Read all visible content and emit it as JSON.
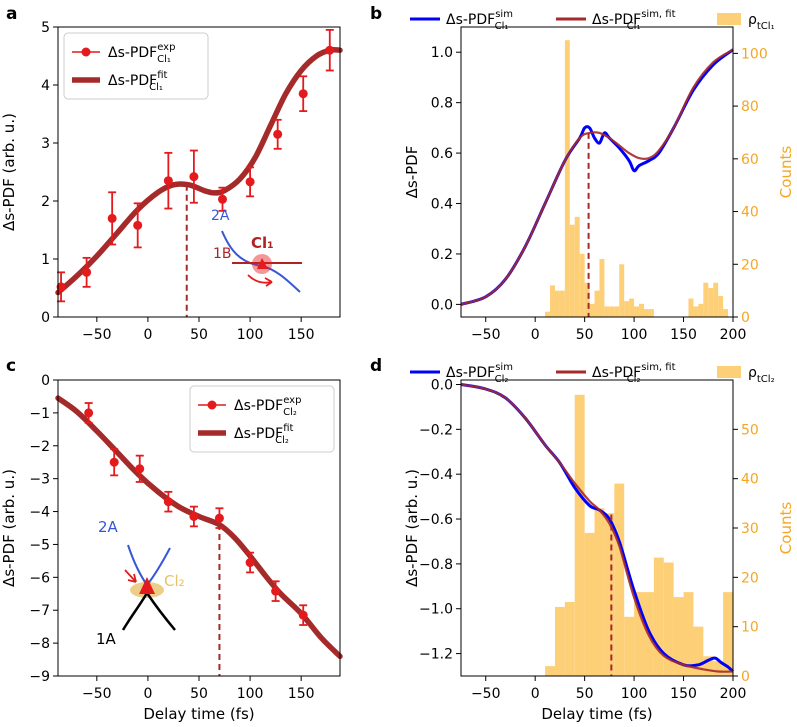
{
  "colors": {
    "exp": "#e41a1c",
    "fit": "#a52a2a",
    "sim": "#0000ff",
    "hist": "#fdcf77",
    "counts": "#f5a623",
    "inset_blue": "#3557d8",
    "inset_yellow": "#e8c26a",
    "black": "#000000"
  },
  "chart_data": [
    {
      "panel": "a",
      "type": "line",
      "xlabel": "",
      "ylabel": "Δs-PDF (arb. u.)",
      "xlim": [
        -88,
        188
      ],
      "ylim": [
        0,
        5
      ],
      "xticks": [
        -50,
        0,
        50,
        100,
        150
      ],
      "yticks": [
        0,
        1,
        2,
        3,
        4,
        5
      ],
      "legend": {
        "position": "top-left",
        "exp": {
          "base": "Δs-PDF",
          "sup": "exp",
          "sub": "Cl₁"
        },
        "fit": {
          "base": "Δs-PDF",
          "sup": "fit",
          "sub": "Cl₁"
        }
      },
      "exp": {
        "x": [
          -85,
          -60,
          -35,
          -10,
          20,
          45,
          73,
          100,
          127,
          152,
          178
        ],
        "y": [
          0.52,
          0.77,
          1.7,
          1.58,
          2.35,
          2.42,
          2.03,
          2.33,
          3.15,
          3.85,
          4.6
        ],
        "err": [
          0.25,
          0.25,
          0.45,
          0.38,
          0.48,
          0.45,
          0.2,
          0.25,
          0.25,
          0.3,
          0.35
        ]
      },
      "fit": {
        "x": [
          -88,
          -70,
          -50,
          -30,
          -10,
          10,
          25,
          40,
          55,
          65,
          75,
          90,
          105,
          120,
          135,
          150,
          165,
          178,
          188
        ],
        "y": [
          0.42,
          0.7,
          1.05,
          1.45,
          1.85,
          2.15,
          2.28,
          2.28,
          2.18,
          2.14,
          2.18,
          2.38,
          2.75,
          3.3,
          3.85,
          4.25,
          4.5,
          4.6,
          4.6
        ]
      },
      "marker_x": 38,
      "inset": {
        "labels": [
          "2A",
          "1B",
          "Cl₁"
        ]
      }
    },
    {
      "panel": "b",
      "type": "line",
      "xlabel": "",
      "ylabel": "Δs-PDF",
      "ylabel_right": "Counts",
      "xlim": [
        -75,
        200
      ],
      "ylim": [
        -0.05,
        1.1
      ],
      "ylim_right": [
        0,
        110
      ],
      "xticks": [
        -50,
        0,
        50,
        100,
        150,
        200
      ],
      "yticks": [
        0.0,
        0.2,
        0.4,
        0.6,
        0.8,
        1.0
      ],
      "yticks_right": [
        0,
        20,
        40,
        60,
        80,
        100
      ],
      "legend": {
        "position": "top",
        "sim": {
          "base": "Δs-PDF",
          "sup": "sim",
          "sub": "Cl₁"
        },
        "fit": {
          "base": "Δs-PDF",
          "sup": "sim, fit",
          "sub": "Cl₁"
        },
        "hist": {
          "base": "ρ",
          "sub": "tCl₁"
        }
      },
      "hist": {
        "bin_edges": [
          10,
          15,
          20,
          25,
          30,
          35,
          40,
          45,
          50,
          55,
          60,
          65,
          70,
          75,
          80,
          85,
          90,
          95,
          100,
          105,
          110,
          115,
          120,
          125,
          130,
          135,
          140,
          145,
          150,
          155,
          160,
          165,
          170,
          175,
          180,
          185,
          190,
          195
        ],
        "counts": [
          2,
          12,
          10,
          10,
          105,
          35,
          38,
          24,
          13,
          5,
          10,
          22,
          4,
          4,
          4,
          20,
          6,
          7,
          4,
          5,
          3,
          3,
          0,
          0,
          0,
          0,
          0,
          0,
          0,
          7,
          4,
          5,
          13,
          11,
          13,
          8,
          3
        ]
      },
      "sim": {
        "x": [
          -75,
          -50,
          -30,
          -10,
          10,
          30,
          45,
          50,
          55,
          60,
          65,
          70,
          75,
          85,
          95,
          100,
          105,
          115,
          125,
          140,
          160,
          180,
          200
        ],
        "y": [
          0.0,
          0.03,
          0.1,
          0.23,
          0.4,
          0.57,
          0.66,
          0.7,
          0.7,
          0.66,
          0.64,
          0.68,
          0.66,
          0.62,
          0.57,
          0.53,
          0.55,
          0.57,
          0.6,
          0.7,
          0.85,
          0.95,
          1.01
        ]
      },
      "fit": {
        "x": [
          -75,
          -50,
          -30,
          -10,
          10,
          30,
          45,
          55,
          65,
          75,
          85,
          95,
          105,
          115,
          125,
          140,
          160,
          180,
          200
        ],
        "y": [
          0.0,
          0.03,
          0.1,
          0.23,
          0.4,
          0.57,
          0.66,
          0.68,
          0.68,
          0.66,
          0.63,
          0.6,
          0.58,
          0.58,
          0.61,
          0.7,
          0.86,
          0.96,
          1.01
        ]
      },
      "marker_x": 54,
      "marker_y": 0.68
    },
    {
      "panel": "c",
      "type": "line",
      "xlabel": "Delay time (fs)",
      "ylabel": "Δs-PDF (arb. u.)",
      "xlim": [
        -88,
        188
      ],
      "ylim": [
        -9,
        0
      ],
      "xticks": [
        -50,
        0,
        50,
        100,
        150
      ],
      "yticks": [
        0,
        -1,
        -2,
        -3,
        -4,
        -5,
        -6,
        -7,
        -8,
        -9
      ],
      "legend": {
        "position": "top-right",
        "exp": {
          "base": "Δs-PDF",
          "sup": "exp",
          "sub": "Cl₂"
        },
        "fit": {
          "base": "Δs-PDF",
          "sup": "fit",
          "sub": "Cl₂"
        }
      },
      "exp": {
        "x": [
          -58,
          -33,
          -8,
          20,
          45,
          70,
          100,
          125,
          152
        ],
        "y": [
          -1.0,
          -2.5,
          -2.7,
          -3.7,
          -4.15,
          -4.2,
          -5.55,
          -6.42,
          -7.15
        ],
        "err": [
          0.3,
          0.4,
          0.4,
          0.3,
          0.3,
          0.3,
          0.3,
          0.3,
          0.3
        ]
      },
      "fit": {
        "x": [
          -88,
          -70,
          -50,
          -30,
          -10,
          10,
          30,
          50,
          70,
          85,
          100,
          115,
          130,
          150,
          170,
          188
        ],
        "y": [
          -0.55,
          -0.95,
          -1.55,
          -2.2,
          -2.85,
          -3.4,
          -3.85,
          -4.15,
          -4.4,
          -4.8,
          -5.35,
          -5.95,
          -6.5,
          -7.1,
          -7.85,
          -8.4
        ]
      },
      "marker_x": 70,
      "inset": {
        "labels": [
          "2A",
          "1A",
          "Cl₂"
        ]
      }
    },
    {
      "panel": "d",
      "type": "line",
      "xlabel": "Delay time (fs)",
      "ylabel": "Δs-PDF (arb. u.)",
      "ylabel_right": "Counts",
      "xlim": [
        -75,
        200
      ],
      "ylim": [
        -1.3,
        0.02
      ],
      "ylim_right": [
        0,
        60
      ],
      "xticks": [
        -50,
        0,
        50,
        100,
        150,
        200
      ],
      "yticks": [
        0.0,
        -0.2,
        -0.4,
        -0.6,
        -0.8,
        -1.0,
        -1.2
      ],
      "yticks_right": [
        0,
        10,
        20,
        30,
        40,
        50
      ],
      "legend": {
        "position": "top",
        "sim": {
          "base": "Δs-PDF",
          "sup": "sim",
          "sub": "Cl₂"
        },
        "fit": {
          "base": "Δs-PDF",
          "sup": "sim, fit",
          "sub": "Cl₂"
        },
        "hist": {
          "base": "ρ",
          "sub": "tCl₂"
        }
      },
      "hist": {
        "bin_edges": [
          10,
          20,
          30,
          40,
          50,
          60,
          70,
          80,
          90,
          100,
          110,
          120,
          130,
          140,
          150,
          160,
          170,
          180,
          190,
          200
        ],
        "counts": [
          2,
          14,
          15,
          57,
          29,
          34,
          33,
          39,
          12,
          17,
          17,
          24,
          23,
          16,
          17,
          10,
          4,
          3,
          17
        ]
      },
      "sim": {
        "x": [
          -75,
          -50,
          -30,
          -10,
          10,
          25,
          40,
          55,
          65,
          75,
          85,
          100,
          115,
          130,
          150,
          165,
          175,
          182,
          188,
          195,
          200
        ],
        "y": [
          0.0,
          -0.02,
          -0.06,
          -0.15,
          -0.27,
          -0.35,
          -0.46,
          -0.54,
          -0.56,
          -0.6,
          -0.7,
          -0.92,
          -1.1,
          -1.2,
          -1.25,
          -1.25,
          -1.23,
          -1.22,
          -1.24,
          -1.26,
          -1.28
        ]
      },
      "fit": {
        "x": [
          -75,
          -50,
          -30,
          -10,
          10,
          25,
          40,
          55,
          65,
          75,
          85,
          100,
          115,
          130,
          150,
          170,
          185,
          200
        ],
        "y": [
          0.0,
          -0.02,
          -0.06,
          -0.15,
          -0.27,
          -0.35,
          -0.44,
          -0.52,
          -0.56,
          -0.62,
          -0.72,
          -0.95,
          -1.12,
          -1.21,
          -1.25,
          -1.27,
          -1.28,
          -1.28
        ]
      },
      "marker_x": 77,
      "marker_y": -0.58
    }
  ]
}
